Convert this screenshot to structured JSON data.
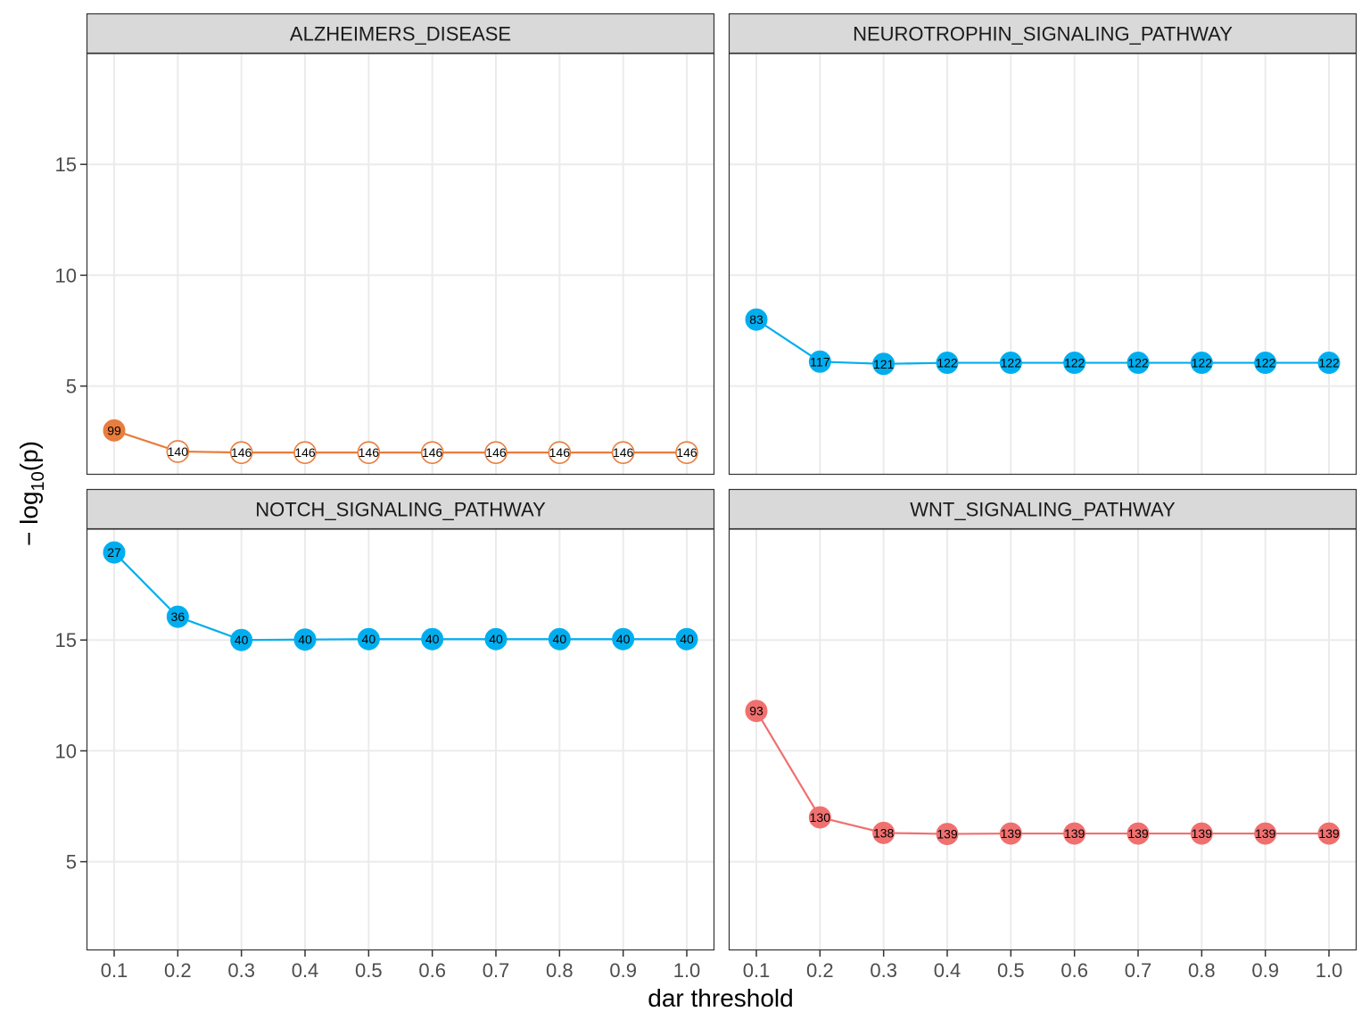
{
  "chart_data": {
    "type": "line",
    "layout": "facet-grid 2x2",
    "xlabel": "dar threshold",
    "ylabel_prefix": "− log",
    "ylabel_subscript": "10",
    "ylabel_suffix": "(p)",
    "xlim": [
      0.1,
      1.0
    ],
    "ylim": [
      1,
      20
    ],
    "x_ticks": [
      0.1,
      0.2,
      0.3,
      0.4,
      0.5,
      0.6,
      0.7,
      0.8,
      0.9,
      1.0
    ],
    "x_tick_labels": [
      "0.1",
      "0.2",
      "0.3",
      "0.4",
      "0.5",
      "0.6",
      "0.7",
      "0.8",
      "0.9",
      "1.0"
    ],
    "y_ticks": [
      5,
      10,
      15
    ],
    "y_tick_labels": [
      "5",
      "10",
      "15"
    ],
    "grid": true,
    "theme": "bw",
    "x": [
      0.1,
      0.2,
      0.3,
      0.4,
      0.5,
      0.6,
      0.7,
      0.8,
      0.9,
      1.0
    ],
    "panels": [
      {
        "title": "ALZHEIMERS_DISEASE",
        "color": "#E87D3E",
        "values": [
          3.0,
          2.05,
          2.0,
          2.0,
          2.0,
          2.0,
          2.0,
          2.0,
          2.0,
          2.0
        ],
        "labels": [
          "99",
          "140",
          "146",
          "146",
          "146",
          "146",
          "146",
          "146",
          "146",
          "146"
        ],
        "filled": [
          true,
          false,
          false,
          false,
          false,
          false,
          false,
          false,
          false,
          false
        ]
      },
      {
        "title": "NEUROTROPHIN_SIGNALING_PATHWAY",
        "color": "#00AEEF",
        "values": [
          8.0,
          6.1,
          6.0,
          6.05,
          6.05,
          6.05,
          6.05,
          6.05,
          6.05,
          6.05
        ],
        "labels": [
          "83",
          "117",
          "121",
          "122",
          "122",
          "122",
          "122",
          "122",
          "122",
          "122"
        ],
        "filled": [
          true,
          true,
          true,
          true,
          true,
          true,
          true,
          true,
          true,
          true
        ]
      },
      {
        "title": "NOTCH_SIGNALING_PATHWAY",
        "color": "#00AEEF",
        "values": [
          18.95,
          16.05,
          15.0,
          15.02,
          15.04,
          15.04,
          15.04,
          15.04,
          15.04,
          15.04
        ],
        "labels": [
          "27",
          "36",
          "40",
          "40",
          "40",
          "40",
          "40",
          "40",
          "40",
          "40"
        ],
        "filled": [
          true,
          true,
          true,
          true,
          true,
          true,
          true,
          true,
          true,
          true
        ]
      },
      {
        "title": "WNT_SIGNALING_PATHWAY",
        "color": "#F07070",
        "values": [
          11.8,
          7.0,
          6.3,
          6.25,
          6.27,
          6.27,
          6.27,
          6.27,
          6.27,
          6.27
        ],
        "labels": [
          "93",
          "130",
          "138",
          "139",
          "139",
          "139",
          "139",
          "139",
          "139",
          "139"
        ],
        "filled": [
          true,
          true,
          true,
          true,
          true,
          true,
          true,
          true,
          true,
          true
        ]
      }
    ]
  }
}
